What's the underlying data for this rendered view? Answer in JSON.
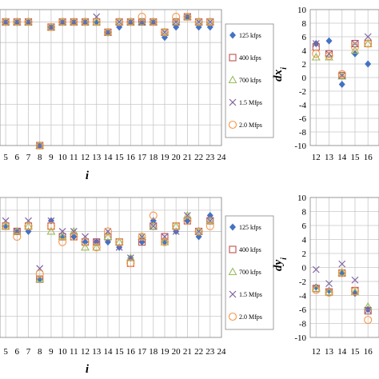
{
  "series_styles": [
    {
      "name": "125 kfps",
      "marker": "diamond",
      "color": "#4472c4"
    },
    {
      "name": "400 kfps",
      "marker": "square",
      "color": "#c0504d"
    },
    {
      "name": "700 kfps",
      "marker": "triangle",
      "color": "#9bbb59"
    },
    {
      "name": "1.5 Mfps",
      "marker": "x",
      "color": "#8064a2"
    },
    {
      "name": "2.0 Mfps",
      "marker": "circle",
      "color": "#f79646"
    }
  ],
  "chart_data": [
    {
      "type": "scatter",
      "xlabel": "i",
      "ylabel": "",
      "xlim": [
        4,
        24
      ],
      "xticks": [
        5,
        6,
        7,
        8,
        9,
        10,
        11,
        12,
        13,
        14,
        15,
        16,
        17,
        18,
        19,
        20,
        21,
        22,
        23,
        24
      ],
      "ylim": [
        -10,
        4
      ],
      "grid": true,
      "legend": "right",
      "x": [
        5,
        6,
        7,
        8,
        9,
        10,
        11,
        12,
        13,
        14,
        15,
        16,
        17,
        18,
        19,
        20,
        21,
        22,
        23
      ],
      "series": [
        {
          "name": "125 kfps",
          "values": [
            2,
            2,
            2,
            -10,
            1.5,
            2,
            2,
            2,
            2,
            1,
            1.5,
            2,
            2,
            2,
            0.5,
            1.5,
            2.5,
            1.5,
            1.5
          ]
        },
        {
          "name": "400 kfps",
          "values": [
            2,
            2,
            2,
            -10,
            1.5,
            2,
            2,
            2,
            2,
            1,
            2,
            2,
            2,
            2,
            1,
            2,
            2.5,
            2,
            2
          ]
        },
        {
          "name": "700 kfps",
          "values": [
            2,
            2,
            2,
            -10,
            1.5,
            2,
            2,
            2,
            2,
            1,
            2,
            2,
            2,
            2,
            1,
            2,
            2.5,
            2,
            2
          ]
        },
        {
          "name": "1.5 Mfps",
          "values": [
            2,
            2,
            2,
            -10,
            1.5,
            2,
            2,
            2,
            2.5,
            1,
            2,
            2,
            2,
            2,
            1,
            2,
            2.5,
            2,
            2
          ]
        },
        {
          "name": "2.0 Mfps",
          "values": [
            2,
            2,
            2,
            -10,
            1.5,
            2,
            2,
            2,
            2,
            1,
            2,
            2,
            2.5,
            2,
            1,
            2.5,
            2.5,
            2,
            2
          ]
        }
      ]
    },
    {
      "type": "scatter",
      "xlabel": "",
      "ylabel": "dx_i",
      "xlim": [
        11.5,
        16.5
      ],
      "xticks": [
        12,
        13,
        14,
        15,
        16
      ],
      "ylim": [
        -10,
        10
      ],
      "yticks": [
        10,
        8,
        6,
        4,
        2,
        0,
        -2,
        -4,
        -6,
        -8,
        -10
      ],
      "grid": true,
      "x": [
        12,
        13,
        14,
        15,
        16
      ],
      "series": [
        {
          "name": "125 kfps",
          "values": [
            5,
            5.4,
            -1,
            3.5,
            2
          ]
        },
        {
          "name": "400 kfps",
          "values": [
            4.5,
            3.5,
            0.3,
            5,
            5
          ]
        },
        {
          "name": "700 kfps",
          "values": [
            3,
            3,
            0.2,
            4,
            5
          ]
        },
        {
          "name": "1.5 Mfps",
          "values": [
            5,
            3.5,
            0.3,
            5,
            6
          ]
        },
        {
          "name": "2.0 Mfps",
          "values": [
            3.5,
            3.2,
            0.5,
            4.5,
            5
          ]
        }
      ]
    },
    {
      "type": "scatter",
      "xlabel": "i",
      "ylabel": "",
      "xlim": [
        4,
        24
      ],
      "xticks": [
        5,
        6,
        7,
        8,
        9,
        10,
        11,
        12,
        13,
        14,
        15,
        16,
        17,
        18,
        19,
        20,
        21,
        22,
        23,
        24
      ],
      "ylim": [
        -10,
        4
      ],
      "grid": true,
      "legend": "right",
      "x": [
        5,
        6,
        7,
        8,
        9,
        10,
        11,
        12,
        13,
        14,
        15,
        16,
        17,
        18,
        19,
        20,
        21,
        22,
        23
      ],
      "series": [
        {
          "name": "125 kfps",
          "values": [
            0.5,
            0,
            0,
            -4.5,
            1,
            -0.5,
            -0.5,
            -1,
            -1,
            -1,
            -1.5,
            -2.5,
            -1,
            1,
            -1,
            0,
            1,
            -0.5,
            1.5
          ]
        },
        {
          "name": "400 kfps",
          "values": [
            0.5,
            0,
            0.5,
            -4.5,
            0.5,
            -0.5,
            -0.5,
            -1,
            -1,
            -0.5,
            -1,
            -3,
            -1,
            0.5,
            -0.5,
            0.5,
            1,
            0,
            1
          ]
        },
        {
          "name": "700 kfps",
          "values": [
            0.5,
            0,
            0.5,
            -4.5,
            0,
            -0.5,
            0,
            -1.5,
            -1.5,
            -0.5,
            -1,
            -2.5,
            -0.5,
            0.5,
            -1,
            0.5,
            1.5,
            0,
            1
          ]
        },
        {
          "name": "1.5 Mfps",
          "values": [
            1,
            0,
            1,
            -3.5,
            1,
            0,
            0,
            -0.5,
            -1,
            0,
            -1.5,
            -2.5,
            -0.5,
            0.5,
            -0.5,
            0,
            1.5,
            0,
            1
          ]
        },
        {
          "name": "2.0 Mfps",
          "values": [
            0.5,
            -0.5,
            0.5,
            -4,
            0.5,
            -1,
            -0.5,
            -1,
            -1.5,
            0,
            -1,
            -3,
            -0.5,
            1.5,
            -1,
            0.5,
            1,
            0,
            0.5
          ]
        }
      ]
    },
    {
      "type": "scatter",
      "xlabel": "",
      "ylabel": "dy_i",
      "xlim": [
        11.5,
        16.5
      ],
      "xticks": [
        12,
        13,
        14,
        15,
        16
      ],
      "ylim": [
        -10,
        10
      ],
      "yticks": [
        10,
        8,
        6,
        4,
        2,
        0,
        -2,
        -4,
        -6,
        -8,
        -10
      ],
      "grid": true,
      "x": [
        12,
        13,
        14,
        15,
        16
      ],
      "series": [
        {
          "name": "125 kfps",
          "values": [
            -2.8,
            -3.3,
            -0.8,
            -3.7,
            -6
          ]
        },
        {
          "name": "400 kfps",
          "values": [
            -3,
            -3.5,
            -0.8,
            -3.3,
            -6.2
          ]
        },
        {
          "name": "700 kfps",
          "values": [
            -3,
            -3.5,
            -0.7,
            -3.5,
            -5.6
          ]
        },
        {
          "name": "1.5 Mfps",
          "values": [
            -0.3,
            -2.3,
            0.5,
            -1.8,
            -6.1
          ]
        },
        {
          "name": "2.0 Mfps",
          "values": [
            -3.2,
            -3.6,
            -0.8,
            -3.4,
            -7.5
          ]
        }
      ]
    }
  ]
}
